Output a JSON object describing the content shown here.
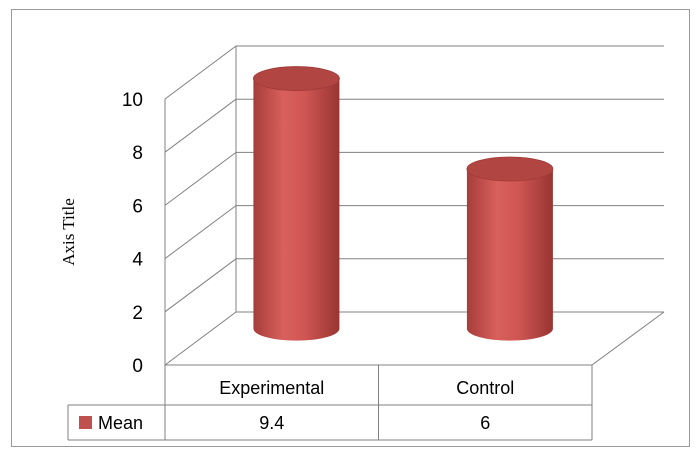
{
  "chart_data": {
    "type": "bar",
    "style": "3d-cylinder",
    "categories": [
      "Experimental",
      "Control"
    ],
    "series": [
      {
        "name": "Mean",
        "values": [
          9.4,
          6
        ],
        "color": "#c0504d"
      }
    ],
    "ylabel": "Axis Title",
    "ylim": [
      0,
      10
    ],
    "yticks": [
      0,
      2,
      4,
      6,
      8,
      10
    ],
    "grid": true,
    "data_table": {
      "row_label": "Mean",
      "values": [
        "9.4",
        "6"
      ]
    }
  }
}
